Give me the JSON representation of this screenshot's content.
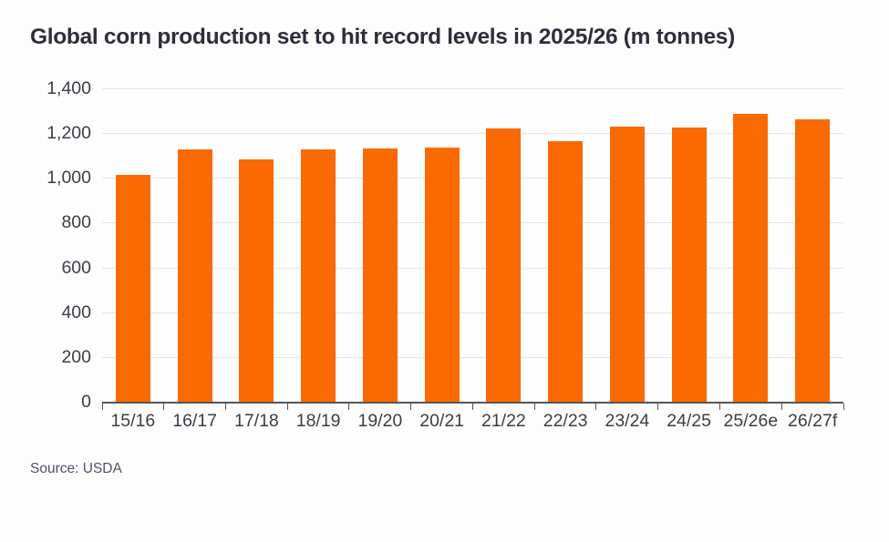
{
  "header": {
    "title": "Global corn production set to hit record levels in 2025/26 (m tonnes)"
  },
  "footer": {
    "source_label": "Source: USDA"
  },
  "colors": {
    "bar": "#f96a02",
    "title_text": "#2e2e3a",
    "axis_text": "#3d3d46",
    "gridline": "#e4e4e4",
    "baseline": "#54545c",
    "background": "#fdfdfd"
  },
  "chart_data": {
    "type": "bar",
    "title": "Global corn production set to hit record levels in 2025/26 (m tonnes)",
    "categories": [
      "15/16",
      "16/17",
      "17/18",
      "18/19",
      "19/20",
      "20/21",
      "21/22",
      "22/23",
      "23/24",
      "24/25",
      "25/26e",
      "26/27f"
    ],
    "values": [
      1014,
      1127,
      1082,
      1129,
      1130,
      1136,
      1220,
      1163,
      1230,
      1226,
      1285,
      1260
    ],
    "series_name": "Global corn production (m tonnes)",
    "xlabel": "",
    "ylabel": "",
    "ylim": [
      0,
      1400
    ],
    "yticks": [
      0,
      200,
      400,
      600,
      800,
      1000,
      1200,
      1400
    ],
    "grid": "horizontal",
    "legend": "none",
    "bar_color": "#f96a02",
    "source": "USDA"
  }
}
